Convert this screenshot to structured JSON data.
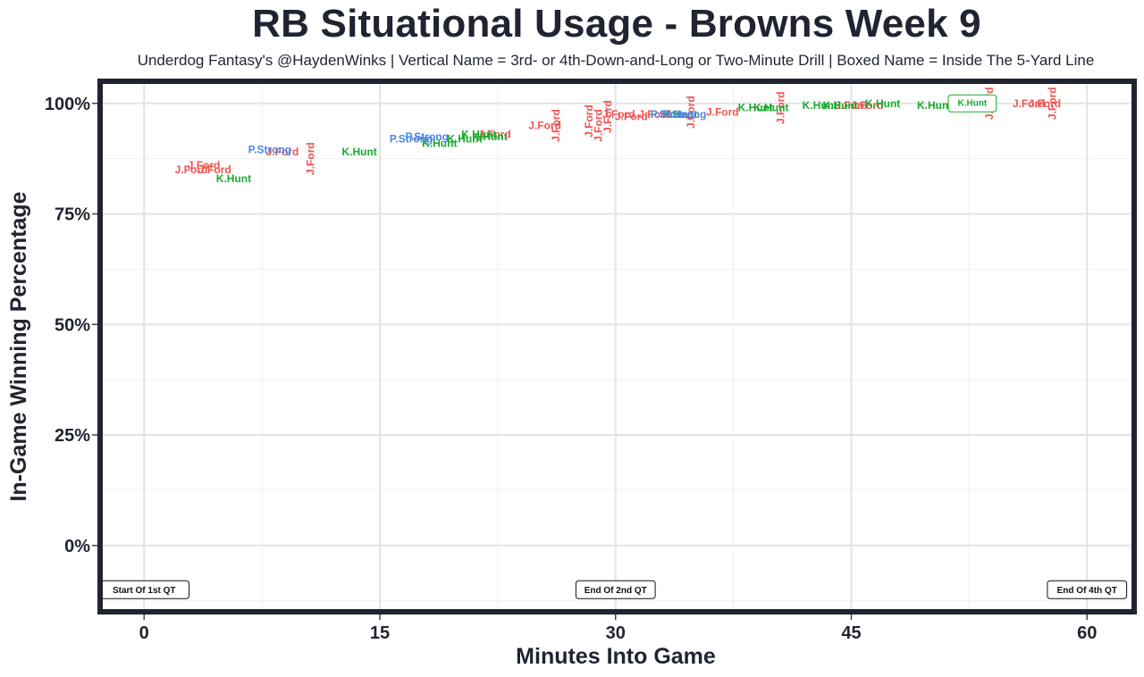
{
  "chart_data": {
    "type": "scatter",
    "title": "RB Situational Usage - Browns Week 9",
    "subtitle": "Underdog Fantasy's @HaydenWinks | Vertical Name = 3rd- or 4th-Down-and-Long or Two-Minute Drill | Boxed Name = Inside The 5-Yard Line",
    "xlabel": "Minutes Into Game",
    "ylabel": "In-Game Winning Percentage",
    "xlim": [
      -2.8,
      63
    ],
    "ylim": [
      -15,
      105
    ],
    "x_ticks": [
      0,
      15,
      30,
      45,
      60
    ],
    "x_tick_labels": [
      "0",
      "15",
      "30",
      "45",
      "60"
    ],
    "y_ticks": [
      0,
      25,
      50,
      75,
      100
    ],
    "y_tick_labels": [
      "0%",
      "25%",
      "50%",
      "75%",
      "100%"
    ],
    "grid": true,
    "colors": {
      "J.Ford": "#ef5350",
      "K.Hunt": "#1aaa2e",
      "P.Strong": "#4a86e8"
    },
    "annotations": [
      {
        "x": 0,
        "text": "Start Of 1st QT"
      },
      {
        "x": 30,
        "text": "End Of 2nd QT"
      },
      {
        "x": 60,
        "text": "End Of 4th QT"
      }
    ],
    "series": [
      {
        "name": "J.Ford",
        "points": [
          {
            "x": 3.0,
            "y": 85,
            "vertical": false,
            "boxed": false
          },
          {
            "x": 3.8,
            "y": 86,
            "vertical": false,
            "boxed": false
          },
          {
            "x": 4.5,
            "y": 85,
            "vertical": false,
            "boxed": false
          },
          {
            "x": 8.8,
            "y": 89,
            "vertical": false,
            "boxed": false
          },
          {
            "x": 10.6,
            "y": 87.5,
            "vertical": true,
            "boxed": false
          },
          {
            "x": 22.3,
            "y": 93,
            "vertical": false,
            "boxed": false
          },
          {
            "x": 25.5,
            "y": 95,
            "vertical": false,
            "boxed": false
          },
          {
            "x": 26.2,
            "y": 95,
            "vertical": true,
            "boxed": false
          },
          {
            "x": 28.3,
            "y": 96,
            "vertical": true,
            "boxed": false
          },
          {
            "x": 28.9,
            "y": 95,
            "vertical": true,
            "boxed": false
          },
          {
            "x": 29.5,
            "y": 97,
            "vertical": true,
            "boxed": false
          },
          {
            "x": 30.2,
            "y": 97.5,
            "vertical": false,
            "boxed": false
          },
          {
            "x": 31.0,
            "y": 97,
            "vertical": false,
            "boxed": false
          },
          {
            "x": 32.5,
            "y": 97.5,
            "vertical": false,
            "boxed": false
          },
          {
            "x": 34.8,
            "y": 98,
            "vertical": true,
            "boxed": false
          },
          {
            "x": 36.8,
            "y": 98,
            "vertical": false,
            "boxed": false
          },
          {
            "x": 40.5,
            "y": 99,
            "vertical": true,
            "boxed": false
          },
          {
            "x": 45.0,
            "y": 99.5,
            "vertical": false,
            "boxed": false
          },
          {
            "x": 46.0,
            "y": 99.5,
            "vertical": false,
            "boxed": false
          },
          {
            "x": 53.8,
            "y": 100,
            "vertical": true,
            "boxed": false
          },
          {
            "x": 56.3,
            "y": 100,
            "vertical": false,
            "boxed": false
          },
          {
            "x": 57.3,
            "y": 100,
            "vertical": false,
            "boxed": false
          },
          {
            "x": 57.8,
            "y": 100,
            "vertical": true,
            "boxed": false
          }
        ]
      },
      {
        "name": "K.Hunt",
        "points": [
          {
            "x": 5.7,
            "y": 83,
            "vertical": false,
            "boxed": false
          },
          {
            "x": 13.7,
            "y": 89,
            "vertical": false,
            "boxed": false
          },
          {
            "x": 18.8,
            "y": 91,
            "vertical": false,
            "boxed": false
          },
          {
            "x": 20.4,
            "y": 92,
            "vertical": false,
            "boxed": false
          },
          {
            "x": 21.3,
            "y": 93,
            "vertical": false,
            "boxed": false
          },
          {
            "x": 22.0,
            "y": 92.5,
            "vertical": false,
            "boxed": false
          },
          {
            "x": 34.1,
            "y": 97.5,
            "vertical": false,
            "boxed": false
          },
          {
            "x": 38.9,
            "y": 99,
            "vertical": false,
            "boxed": false
          },
          {
            "x": 39.9,
            "y": 99,
            "vertical": false,
            "boxed": false
          },
          {
            "x": 43.0,
            "y": 99.5,
            "vertical": false,
            "boxed": false
          },
          {
            "x": 44.3,
            "y": 99.5,
            "vertical": false,
            "boxed": false
          },
          {
            "x": 47.0,
            "y": 100,
            "vertical": false,
            "boxed": false
          },
          {
            "x": 50.3,
            "y": 99.5,
            "vertical": false,
            "boxed": false
          },
          {
            "x": 52.7,
            "y": 100,
            "vertical": false,
            "boxed": true
          }
        ]
      },
      {
        "name": "P.Strong",
        "points": [
          {
            "x": 8.0,
            "y": 89.5,
            "vertical": false,
            "boxed": false
          },
          {
            "x": 17.0,
            "y": 92,
            "vertical": false,
            "boxed": false
          },
          {
            "x": 18.0,
            "y": 92.5,
            "vertical": false,
            "boxed": false
          },
          {
            "x": 33.6,
            "y": 97.5,
            "vertical": false,
            "boxed": false
          },
          {
            "x": 34.4,
            "y": 97.5,
            "vertical": false,
            "boxed": false
          }
        ]
      }
    ]
  }
}
